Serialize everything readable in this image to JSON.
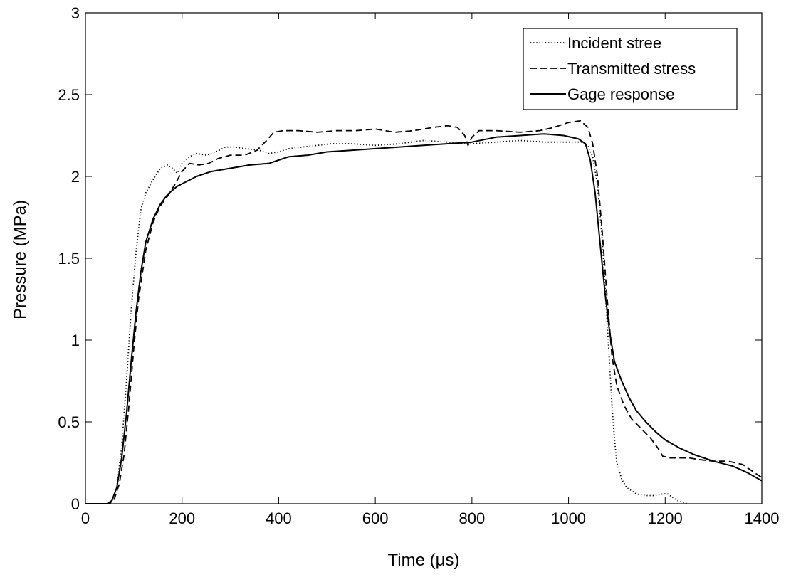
{
  "chart_data": {
    "type": "line",
    "title": "",
    "xlabel": "Time (μs)",
    "ylabel": "Pressure (MPa)",
    "xlim": [
      0,
      1400
    ],
    "ylim": [
      0,
      3
    ],
    "xticks": [
      0,
      200,
      400,
      600,
      800,
      1000,
      1200,
      1400
    ],
    "yticks": [
      0,
      0.5,
      1,
      1.5,
      2,
      2.5,
      3
    ],
    "xtick_labels": [
      "0",
      "200",
      "400",
      "600",
      "800",
      "1000",
      "1200",
      "1400"
    ],
    "ytick_labels": [
      "0",
      "0.5",
      "1",
      "1.5",
      "2",
      "2.5",
      "3"
    ],
    "grid": false,
    "legend_position": "top-right",
    "series": [
      {
        "name": "Incident stree",
        "line_style": "dotted",
        "color": "#000000",
        "points": [
          [
            0,
            0
          ],
          [
            45,
            0
          ],
          [
            55,
            0.02
          ],
          [
            65,
            0.1
          ],
          [
            75,
            0.35
          ],
          [
            85,
            0.75
          ],
          [
            95,
            1.2
          ],
          [
            105,
            1.55
          ],
          [
            115,
            1.8
          ],
          [
            125,
            1.9
          ],
          [
            140,
            1.98
          ],
          [
            155,
            2.05
          ],
          [
            170,
            2.07
          ],
          [
            180,
            2.05
          ],
          [
            190,
            2.02
          ],
          [
            200,
            2.08
          ],
          [
            215,
            2.12
          ],
          [
            230,
            2.14
          ],
          [
            250,
            2.13
          ],
          [
            270,
            2.15
          ],
          [
            290,
            2.18
          ],
          [
            310,
            2.18
          ],
          [
            330,
            2.17
          ],
          [
            360,
            2.16
          ],
          [
            380,
            2.14
          ],
          [
            400,
            2.15
          ],
          [
            420,
            2.17
          ],
          [
            450,
            2.18
          ],
          [
            480,
            2.19
          ],
          [
            510,
            2.2
          ],
          [
            550,
            2.2
          ],
          [
            600,
            2.19
          ],
          [
            650,
            2.2
          ],
          [
            700,
            2.22
          ],
          [
            750,
            2.21
          ],
          [
            800,
            2.2
          ],
          [
            850,
            2.21
          ],
          [
            900,
            2.22
          ],
          [
            950,
            2.21
          ],
          [
            1000,
            2.21
          ],
          [
            1030,
            2.21
          ],
          [
            1040,
            2.19
          ],
          [
            1050,
            2.12
          ],
          [
            1060,
            1.95
          ],
          [
            1070,
            1.6
          ],
          [
            1080,
            1.1
          ],
          [
            1090,
            0.6
          ],
          [
            1095,
            0.4
          ],
          [
            1100,
            0.25
          ],
          [
            1110,
            0.15
          ],
          [
            1120,
            0.1
          ],
          [
            1140,
            0.06
          ],
          [
            1160,
            0.05
          ],
          [
            1180,
            0.05
          ],
          [
            1195,
            0.06
          ],
          [
            1205,
            0.06
          ],
          [
            1215,
            0.04
          ],
          [
            1225,
            0.02
          ],
          [
            1235,
            0.01
          ],
          [
            1245,
            0
          ]
        ]
      },
      {
        "name": "Transmitted stress",
        "line_style": "dashed",
        "color": "#000000",
        "points": [
          [
            0,
            0
          ],
          [
            50,
            0
          ],
          [
            60,
            0.03
          ],
          [
            70,
            0.12
          ],
          [
            80,
            0.3
          ],
          [
            90,
            0.6
          ],
          [
            100,
            0.95
          ],
          [
            110,
            1.25
          ],
          [
            125,
            1.55
          ],
          [
            140,
            1.72
          ],
          [
            155,
            1.82
          ],
          [
            170,
            1.88
          ],
          [
            185,
            1.95
          ],
          [
            200,
            2.03
          ],
          [
            215,
            2.08
          ],
          [
            235,
            2.07
          ],
          [
            255,
            2.08
          ],
          [
            275,
            2.11
          ],
          [
            300,
            2.13
          ],
          [
            330,
            2.13
          ],
          [
            355,
            2.16
          ],
          [
            375,
            2.22
          ],
          [
            390,
            2.27
          ],
          [
            410,
            2.28
          ],
          [
            440,
            2.28
          ],
          [
            480,
            2.27
          ],
          [
            520,
            2.28
          ],
          [
            560,
            2.28
          ],
          [
            600,
            2.29
          ],
          [
            640,
            2.27
          ],
          [
            680,
            2.28
          ],
          [
            720,
            2.3
          ],
          [
            750,
            2.31
          ],
          [
            770,
            2.3
          ],
          [
            785,
            2.25
          ],
          [
            792,
            2.19
          ],
          [
            800,
            2.24
          ],
          [
            815,
            2.28
          ],
          [
            850,
            2.28
          ],
          [
            900,
            2.27
          ],
          [
            940,
            2.28
          ],
          [
            970,
            2.3
          ],
          [
            1000,
            2.33
          ],
          [
            1025,
            2.34
          ],
          [
            1040,
            2.3
          ],
          [
            1050,
            2.2
          ],
          [
            1060,
            2.0
          ],
          [
            1070,
            1.65
          ],
          [
            1080,
            1.25
          ],
          [
            1090,
            0.9
          ],
          [
            1100,
            0.72
          ],
          [
            1115,
            0.6
          ],
          [
            1130,
            0.52
          ],
          [
            1150,
            0.46
          ],
          [
            1170,
            0.4
          ],
          [
            1185,
            0.34
          ],
          [
            1195,
            0.29
          ],
          [
            1210,
            0.28
          ],
          [
            1230,
            0.28
          ],
          [
            1250,
            0.28
          ],
          [
            1270,
            0.27
          ],
          [
            1300,
            0.26
          ],
          [
            1330,
            0.26
          ],
          [
            1360,
            0.24
          ],
          [
            1380,
            0.2
          ],
          [
            1400,
            0.16
          ]
        ]
      },
      {
        "name": "Gage response",
        "line_style": "solid",
        "color": "#000000",
        "points": [
          [
            0,
            0
          ],
          [
            45,
            0
          ],
          [
            55,
            0.02
          ],
          [
            65,
            0.1
          ],
          [
            75,
            0.28
          ],
          [
            85,
            0.55
          ],
          [
            95,
            0.88
          ],
          [
            105,
            1.18
          ],
          [
            115,
            1.42
          ],
          [
            125,
            1.6
          ],
          [
            140,
            1.74
          ],
          [
            155,
            1.83
          ],
          [
            170,
            1.89
          ],
          [
            190,
            1.94
          ],
          [
            210,
            1.97
          ],
          [
            230,
            2.0
          ],
          [
            260,
            2.03
          ],
          [
            300,
            2.05
          ],
          [
            340,
            2.07
          ],
          [
            380,
            2.08
          ],
          [
            400,
            2.1
          ],
          [
            420,
            2.12
          ],
          [
            460,
            2.13
          ],
          [
            500,
            2.15
          ],
          [
            550,
            2.16
          ],
          [
            600,
            2.17
          ],
          [
            650,
            2.18
          ],
          [
            700,
            2.19
          ],
          [
            750,
            2.2
          ],
          [
            800,
            2.21
          ],
          [
            850,
            2.24
          ],
          [
            900,
            2.25
          ],
          [
            950,
            2.26
          ],
          [
            990,
            2.25
          ],
          [
            1020,
            2.23
          ],
          [
            1035,
            2.2
          ],
          [
            1045,
            2.1
          ],
          [
            1055,
            1.9
          ],
          [
            1065,
            1.6
          ],
          [
            1075,
            1.3
          ],
          [
            1085,
            1.05
          ],
          [
            1095,
            0.87
          ],
          [
            1110,
            0.75
          ],
          [
            1125,
            0.65
          ],
          [
            1140,
            0.57
          ],
          [
            1160,
            0.5
          ],
          [
            1180,
            0.44
          ],
          [
            1200,
            0.39
          ],
          [
            1230,
            0.34
          ],
          [
            1260,
            0.3
          ],
          [
            1300,
            0.26
          ],
          [
            1340,
            0.23
          ],
          [
            1370,
            0.19
          ],
          [
            1400,
            0.14
          ]
        ]
      }
    ]
  }
}
